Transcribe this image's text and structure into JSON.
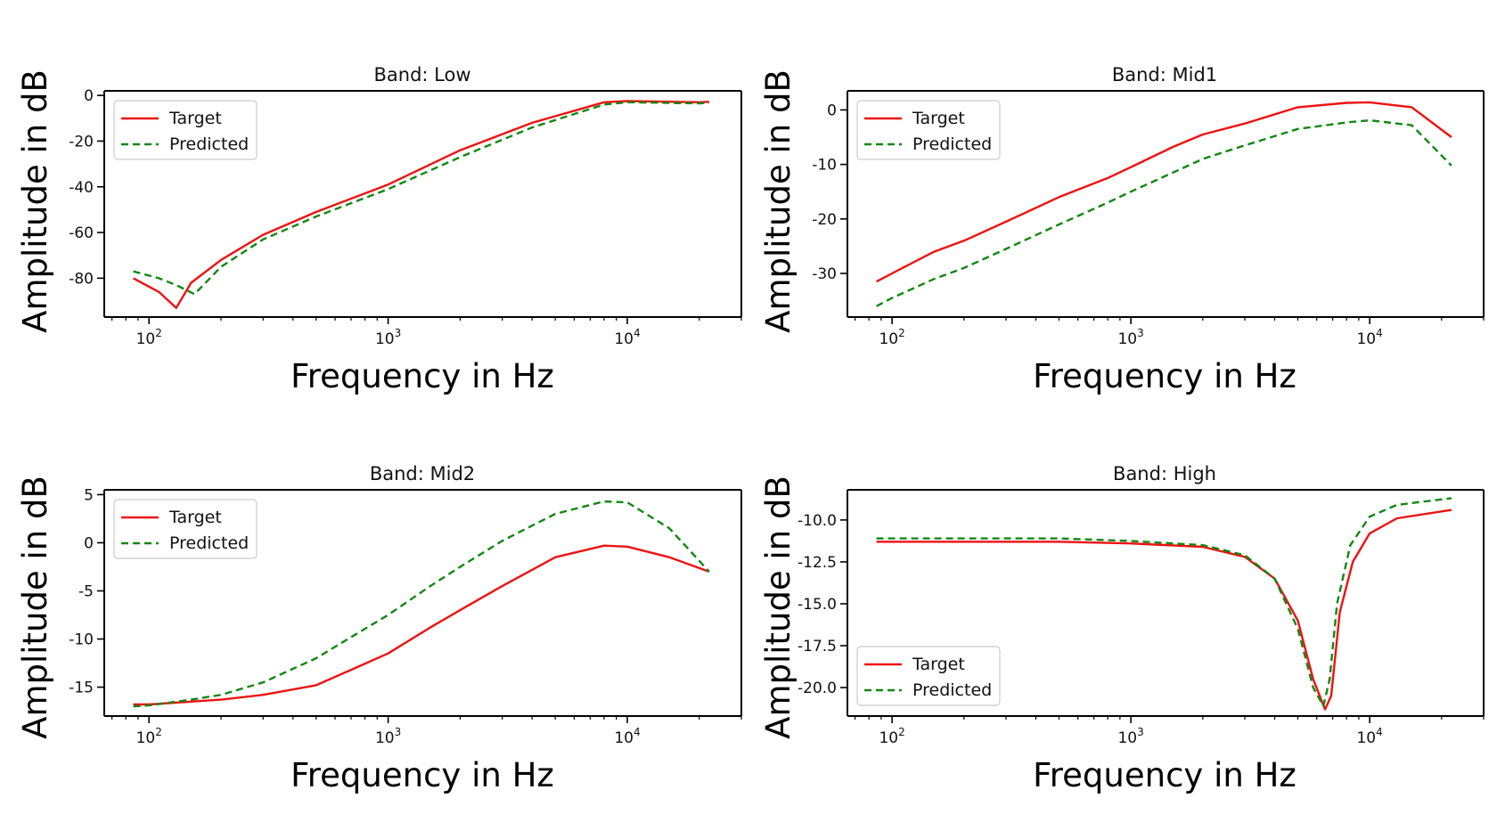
{
  "figure": {
    "colors": {
      "target": "#ee1111",
      "predicted": "#118811",
      "axis": "#000000"
    }
  },
  "chart_data": [
    {
      "type": "line",
      "title": "Band: Low",
      "xlabel": "Frequency in Hz",
      "ylabel": "Amplitude in dB",
      "xscale": "log",
      "xlim": [
        65,
        30000
      ],
      "ylim": [
        -97,
        2
      ],
      "xticks": [
        {
          "value": 100,
          "base": "10",
          "exp": "2"
        },
        {
          "value": 1000,
          "base": "10",
          "exp": "3"
        },
        {
          "value": 10000,
          "base": "10",
          "exp": "4"
        }
      ],
      "yticks": [
        {
          "value": 0,
          "label": "0"
        },
        {
          "value": -20,
          "label": "-20"
        },
        {
          "value": -40,
          "label": "-40"
        },
        {
          "value": -60,
          "label": "-60"
        },
        {
          "value": -80,
          "label": "-80"
        }
      ],
      "legend": {
        "position": "top-left",
        "entries": [
          "Target",
          "Predicted"
        ]
      },
      "series": [
        {
          "name": "Target",
          "style": "solid",
          "x": [
            86,
            110,
            130,
            150,
            200,
            300,
            500,
            1000,
            2000,
            4000,
            8000,
            10000,
            20000,
            22000
          ],
          "y": [
            -80,
            -86,
            -93,
            -82,
            -72,
            -61,
            -51,
            -39,
            -24,
            -12,
            -3,
            -2.5,
            -3,
            -2.8
          ]
        },
        {
          "name": "Predicted",
          "style": "dashed",
          "x": [
            86,
            110,
            130,
            155,
            200,
            300,
            500,
            1000,
            2000,
            4000,
            8000,
            10000,
            20000,
            22000
          ],
          "y": [
            -77,
            -80,
            -83,
            -87,
            -75,
            -63,
            -53,
            -41,
            -27,
            -14,
            -4,
            -3,
            -3.5,
            -3.2
          ]
        }
      ]
    },
    {
      "type": "line",
      "title": "Band: Mid1",
      "xlabel": "Frequency in Hz",
      "ylabel": "Amplitude in dB",
      "xscale": "log",
      "xlim": [
        65,
        30000
      ],
      "ylim": [
        -38,
        3.5
      ],
      "xticks": [
        {
          "value": 100,
          "base": "10",
          "exp": "2"
        },
        {
          "value": 1000,
          "base": "10",
          "exp": "3"
        },
        {
          "value": 10000,
          "base": "10",
          "exp": "4"
        }
      ],
      "yticks": [
        {
          "value": 0,
          "label": "0"
        },
        {
          "value": -10,
          "label": "-10"
        },
        {
          "value": -20,
          "label": "-20"
        },
        {
          "value": -30,
          "label": "-30"
        }
      ],
      "legend": {
        "position": "top-left",
        "entries": [
          "Target",
          "Predicted"
        ]
      },
      "series": [
        {
          "name": "Target",
          "style": "solid",
          "x": [
            86,
            100,
            150,
            200,
            300,
            500,
            800,
            1000,
            1500,
            2000,
            3000,
            5000,
            8000,
            10000,
            15000,
            22000
          ],
          "y": [
            -31.5,
            -30,
            -26,
            -24,
            -20.5,
            -16,
            -12.5,
            -10.5,
            -6.8,
            -4.5,
            -2.5,
            0.5,
            1.3,
            1.4,
            0.5,
            -5
          ]
        },
        {
          "name": "Predicted",
          "style": "dashed",
          "x": [
            86,
            100,
            150,
            200,
            300,
            500,
            800,
            1000,
            1500,
            2000,
            3000,
            5000,
            8000,
            10000,
            15000,
            22000
          ],
          "y": [
            -36,
            -34.5,
            -31,
            -29,
            -25.5,
            -21,
            -17,
            -15,
            -11.5,
            -9,
            -6.5,
            -3.5,
            -2.3,
            -1.9,
            -2.8,
            -10.2
          ]
        }
      ]
    },
    {
      "type": "line",
      "title": "Band: Mid2",
      "xlabel": "Frequency in Hz",
      "ylabel": "Amplitude in dB",
      "xscale": "log",
      "xlim": [
        65,
        30000
      ],
      "ylim": [
        -18,
        5.5
      ],
      "xticks": [
        {
          "value": 100,
          "base": "10",
          "exp": "2"
        },
        {
          "value": 1000,
          "base": "10",
          "exp": "3"
        },
        {
          "value": 10000,
          "base": "10",
          "exp": "4"
        }
      ],
      "yticks": [
        {
          "value": 5,
          "label": "5"
        },
        {
          "value": 0,
          "label": "0"
        },
        {
          "value": -5,
          "label": "-5"
        },
        {
          "value": -10,
          "label": "-10"
        },
        {
          "value": -15,
          "label": "-15"
        }
      ],
      "legend": {
        "position": "top-left",
        "entries": [
          "Target",
          "Predicted"
        ]
      },
      "series": [
        {
          "name": "Target",
          "style": "solid",
          "x": [
            86,
            100,
            150,
            200,
            300,
            500,
            700,
            1000,
            1500,
            2000,
            3000,
            5000,
            8000,
            10000,
            15000,
            22000
          ],
          "y": [
            -16.8,
            -16.8,
            -16.5,
            -16.3,
            -15.8,
            -14.8,
            -13.2,
            -11.5,
            -8.8,
            -7,
            -4.5,
            -1.5,
            -0.3,
            -0.4,
            -1.5,
            -3
          ]
        },
        {
          "name": "Predicted",
          "style": "dashed",
          "x": [
            86,
            100,
            150,
            200,
            300,
            500,
            700,
            1000,
            1500,
            2000,
            3000,
            5000,
            8000,
            10000,
            15000,
            22000
          ],
          "y": [
            -17,
            -16.9,
            -16.3,
            -15.8,
            -14.5,
            -12,
            -9.8,
            -7.5,
            -4.5,
            -2.5,
            0.2,
            3,
            4.3,
            4.2,
            1.5,
            -3
          ]
        }
      ]
    },
    {
      "type": "line",
      "title": "Band: High",
      "xlabel": "Frequency in Hz",
      "ylabel": "Amplitude in dB",
      "xscale": "log",
      "xlim": [
        65,
        30000
      ],
      "ylim": [
        -21.7,
        -8.2
      ],
      "xticks": [
        {
          "value": 100,
          "base": "10",
          "exp": "2"
        },
        {
          "value": 1000,
          "base": "10",
          "exp": "3"
        },
        {
          "value": 10000,
          "base": "10",
          "exp": "4"
        }
      ],
      "yticks": [
        {
          "value": -10,
          "label": "-10.0"
        },
        {
          "value": -12.5,
          "label": "-12.5"
        },
        {
          "value": -15,
          "label": "-15.0"
        },
        {
          "value": -17.5,
          "label": "-17.5"
        },
        {
          "value": -20,
          "label": "-20.0"
        }
      ],
      "legend": {
        "position": "bottom-left",
        "entries": [
          "Target",
          "Predicted"
        ]
      },
      "series": [
        {
          "name": "Target",
          "style": "solid",
          "x": [
            86,
            200,
            500,
            1000,
            2000,
            3000,
            4000,
            5000,
            5800,
            6500,
            6900,
            7500,
            8500,
            10000,
            13000,
            22000
          ],
          "y": [
            -11.3,
            -11.3,
            -11.3,
            -11.4,
            -11.6,
            -12.2,
            -13.5,
            -16,
            -19.5,
            -21.3,
            -20.5,
            -15.5,
            -12.5,
            -10.8,
            -9.9,
            -9.4
          ]
        },
        {
          "name": "Predicted",
          "style": "dashed",
          "x": [
            86,
            200,
            500,
            1000,
            2000,
            3000,
            4000,
            5000,
            5800,
            6400,
            6800,
            7300,
            8300,
            10000,
            13000,
            22000
          ],
          "y": [
            -11.1,
            -11.1,
            -11.1,
            -11.25,
            -11.5,
            -12.1,
            -13.5,
            -16.5,
            -20,
            -21.1,
            -19.5,
            -15,
            -11.5,
            -9.8,
            -9.1,
            -8.7
          ]
        }
      ]
    }
  ]
}
